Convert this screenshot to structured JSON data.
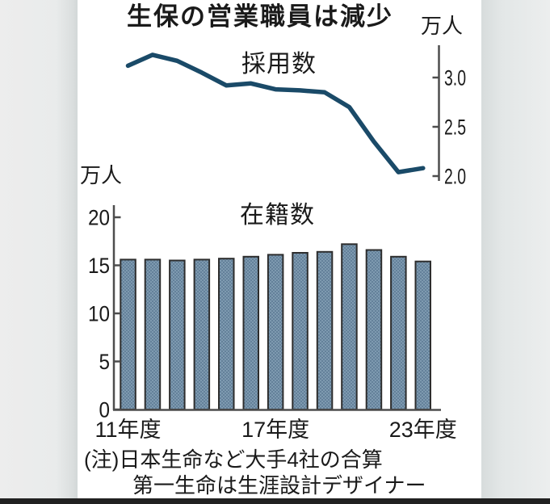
{
  "title": "生保の営業職員は減少",
  "note": {
    "line1": "(注)日本生命など大手4社の合算",
    "line2": "第一生命は生涯設計デザイナー"
  },
  "colors": {
    "axis": "#4d4d4d",
    "text": "#1a1a1a"
  },
  "chart_data": [
    {
      "name": "hires",
      "type": "line",
      "title": "採用数",
      "unit": "万人",
      "x_years": [
        "11",
        "12",
        "13",
        "14",
        "15",
        "16",
        "17",
        "18",
        "19",
        "20",
        "21",
        "22",
        "23"
      ],
      "values": [
        3.12,
        3.23,
        3.17,
        3.05,
        2.92,
        2.94,
        2.88,
        2.87,
        2.85,
        2.7,
        2.35,
        2.04,
        2.08
      ],
      "yticks": [
        3.0,
        2.5,
        2.0
      ],
      "ytick_labels": [
        "3.0",
        "2.5",
        "2.0"
      ],
      "axis_side": "right",
      "line_color": "#1a4a68"
    },
    {
      "name": "enrolled",
      "type": "bar",
      "title": "在籍数",
      "unit": "万人",
      "x_years": [
        "11",
        "12",
        "13",
        "14",
        "15",
        "16",
        "17",
        "18",
        "19",
        "20",
        "21",
        "22",
        "23"
      ],
      "values": [
        15.6,
        15.6,
        15.5,
        15.6,
        15.7,
        15.9,
        16.1,
        16.3,
        16.4,
        17.2,
        16.6,
        15.9,
        15.4
      ],
      "ylim": [
        0,
        20
      ],
      "yticks": [
        20,
        15,
        10,
        5,
        0
      ],
      "ytick_labels": [
        "20",
        "15",
        "10",
        "5",
        "0"
      ],
      "xtick_labels": [
        "11年度",
        "17年度",
        "23年度"
      ],
      "xtick_indices": [
        0,
        6,
        12
      ],
      "bar_fill": "#7e9ab0",
      "bar_fill_dark": "#64819a",
      "bar_stroke": "#2d2d2d"
    }
  ]
}
